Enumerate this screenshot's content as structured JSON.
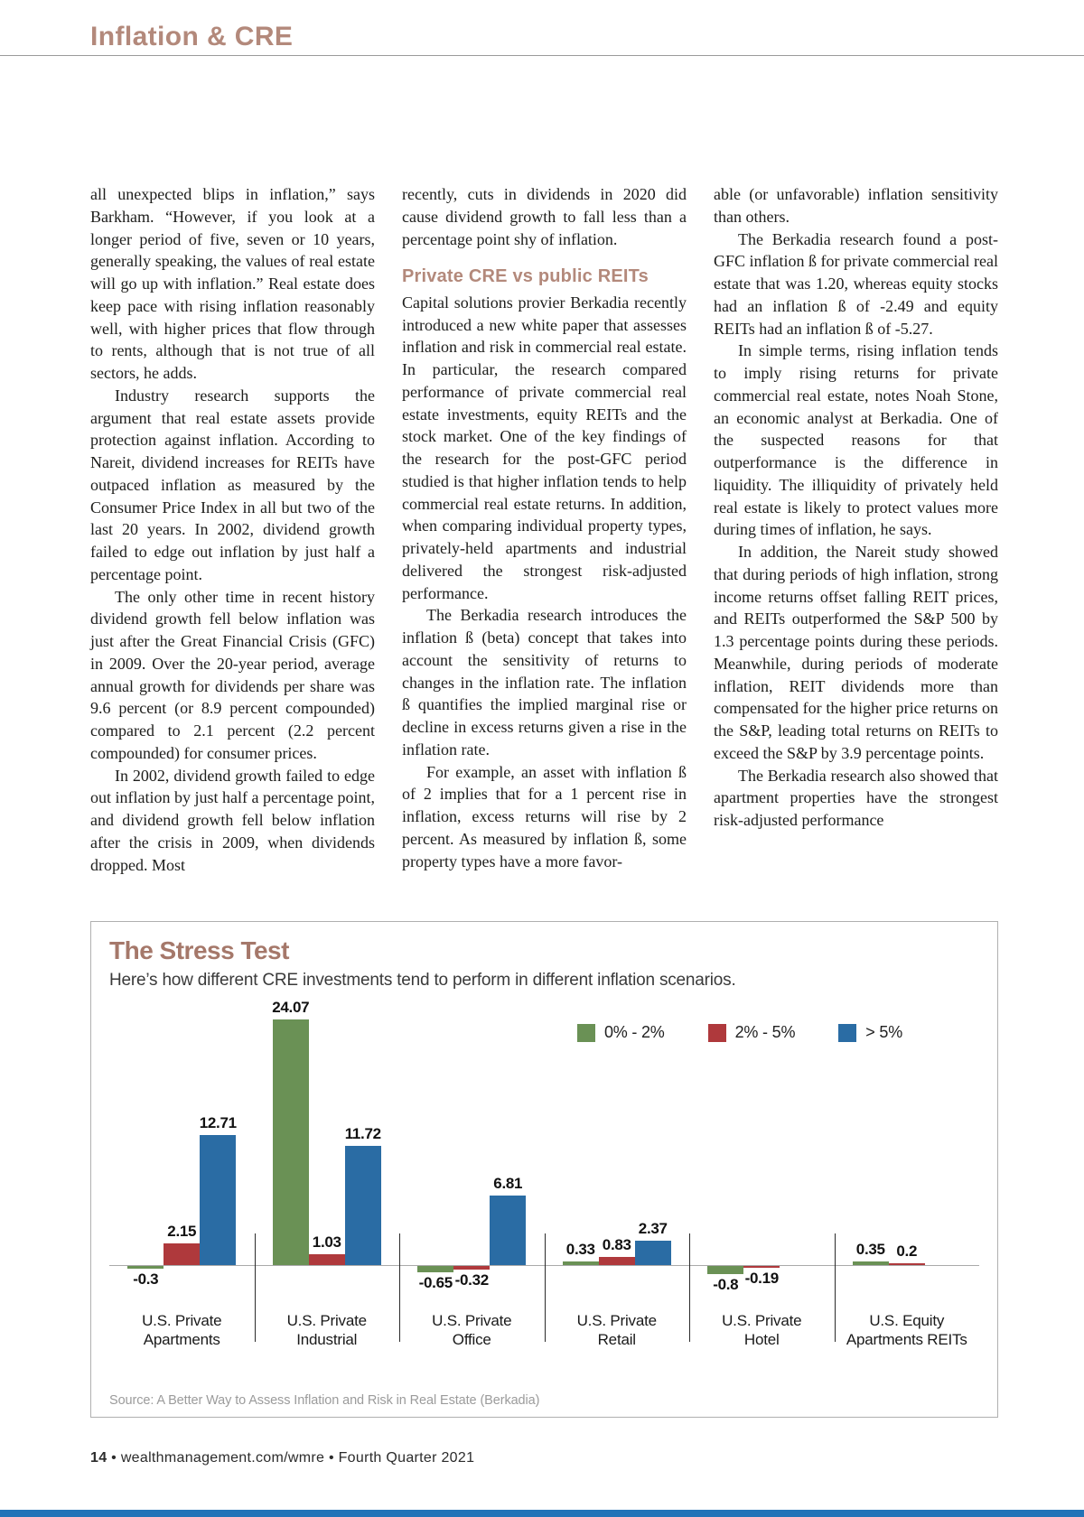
{
  "header": {
    "title": "Inflation & CRE"
  },
  "article": {
    "columns": [
      {
        "blocks": [
          {
            "type": "paragraph",
            "indent": false,
            "text": "all unexpected blips in inflation,” says Barkham. “However, if you look at a longer period of five, seven or 10 years, generally speaking, the values of real estate will go up with inflation.” Real estate does keep pace with rising inflation reasonably well, with higher prices that flow through to rents, although that is not true of all sectors, he adds."
          },
          {
            "type": "paragraph",
            "indent": true,
            "text": "Industry research supports the argument that real estate assets provide protection against inflation. According to Nareit, dividend increases for REITs have outpaced inflation as measured by the Consumer Price Index in all but two of the last 20 years. In 2002, dividend growth failed to edge out inflation by just half a percentage point."
          },
          {
            "type": "paragraph",
            "indent": true,
            "text": "The only other time in recent history dividend growth fell below inflation was just after the Great Financial Crisis (GFC) in 2009. Over the 20-year period, average annual growth for dividends per share was 9.6 percent (or 8.9 percent compounded) compared to 2.1 percent (2.2 percent compounded) for consumer prices."
          },
          {
            "type": "paragraph",
            "indent": true,
            "text": "In 2002, dividend growth failed to edge out inflation by just half a percentage point, and dividend growth fell below inflation after the crisis in 2009, when dividends dropped. Most"
          }
        ]
      },
      {
        "blocks": [
          {
            "type": "paragraph",
            "indent": false,
            "text": "recently, cuts in dividends in 2020 did cause dividend growth to fall less than a percentage point shy of inflation."
          },
          {
            "type": "heading",
            "text": "Private CRE vs public REITs"
          },
          {
            "type": "paragraph",
            "indent": false,
            "text": "Capital solutions provier Berkadia recently introduced a new white paper that assesses inflation and risk in commercial real estate. In particular, the research compared performance of private commercial real estate investments, equity REITs and the stock market. One of the key findings of the research for the post-GFC period studied is that higher inflation tends to help commercial real estate returns. In addition, when comparing individual property types, privately-held apartments and industrial delivered the strongest risk-adjusted performance."
          },
          {
            "type": "paragraph",
            "indent": true,
            "text": "The Berkadia research introduces the inflation ß (beta) concept that takes into account the sensitivity of returns to changes in the inflation rate. The inflation ß quantifies the implied marginal rise or decline in excess returns given a rise in the inflation rate."
          },
          {
            "type": "paragraph",
            "indent": true,
            "text": "For example, an asset with inflation ß of 2 implies that for a 1 percent rise in inflation, excess returns will rise by 2 percent. As measured by inflation ß, some property types have a more favor-"
          }
        ]
      },
      {
        "blocks": [
          {
            "type": "paragraph",
            "indent": false,
            "text": "able (or unfavorable) inflation sensitivity than others."
          },
          {
            "type": "paragraph",
            "indent": true,
            "text": "The Berkadia research found a post-GFC inflation ß for private commercial real estate that was 1.20, whereas equity stocks had an inflation ß of -2.49 and equity REITs had an inflation ß of -5.27."
          },
          {
            "type": "paragraph",
            "indent": true,
            "text": "In simple terms, rising inflation tends to imply rising returns for private commercial real estate, notes Noah Stone, an economic analyst at Berkadia. One of the suspected reasons for that outperformance is the difference in liquidity. The illiquidity of privately held real estate is likely to protect values more during times of inflation, he says."
          },
          {
            "type": "paragraph",
            "indent": true,
            "text": "In addition, the Nareit study showed that during periods of high inflation, strong income returns offset falling REIT prices, and REITs outperformed the S&P 500 by 1.3 percentage points during these periods. Meanwhile, during periods of moderate inflation, REIT dividends more than compensated for the higher price returns on the S&P, leading total returns on REITs to exceed the S&P by 3.9 percentage points."
          },
          {
            "type": "paragraph",
            "indent": true,
            "text": "The Berkadia research also showed that apartment properties have the strongest risk-adjusted performance"
          }
        ]
      }
    ]
  },
  "chart_data": {
    "type": "bar",
    "title": "The Stress Test",
    "subtitle": "Here’s how different CRE investments tend to perform in different inflation scenarios.",
    "categories": [
      "U.S. Private Apartments",
      "U.S. Private Industrial",
      "U.S. Private Office",
      "U.S. Private Retail",
      "U.S. Private Hotel",
      "U.S. Equity Apartments REITs"
    ],
    "category_labels": [
      [
        "U.S. Private",
        "Apartments"
      ],
      [
        "U.S. Private",
        "Industrial"
      ],
      [
        "U.S. Private",
        "Office"
      ],
      [
        "U.S. Private",
        "Retail"
      ],
      [
        "U.S. Private",
        "Hotel"
      ],
      [
        "U.S. Equity",
        "Apartments REITs"
      ]
    ],
    "series": [
      {
        "name": "0% - 2%",
        "color": "#6a9155",
        "values": [
          -0.3,
          24.07,
          -0.65,
          0.33,
          -0.8,
          0.35
        ]
      },
      {
        "name": "2% - 5%",
        "color": "#af393c",
        "values": [
          2.15,
          1.03,
          -0.32,
          0.83,
          -0.19,
          0.2
        ]
      },
      {
        "name": "> 5%",
        "color": "#2a6ca4",
        "values": [
          12.71,
          11.72,
          6.81,
          2.37,
          null,
          null
        ]
      }
    ],
    "value_labels": true,
    "grid": false,
    "legend_position": "top-right",
    "ylim": [
      -1.5,
      26
    ],
    "source": "Source: A Better Way to Assess Inflation and Risk in Real Estate (Berkadia)"
  },
  "footer": {
    "page_number": "14",
    "separator": "•",
    "site": "wealthmanagement.com/wmre",
    "issue": "Fourth Quarter 2021"
  },
  "colors": {
    "accent_heading": "#b3897b",
    "chart_title": "#a5786a",
    "bottom_bar": "#2273b8"
  }
}
